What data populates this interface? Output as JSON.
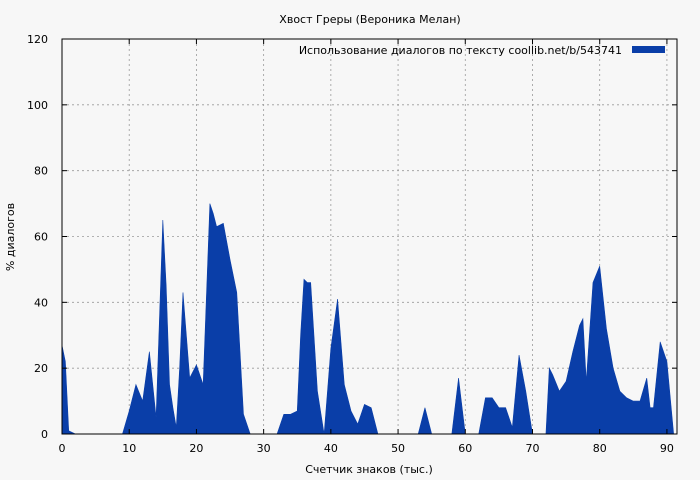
{
  "chart_data": {
    "type": "area",
    "title": "Хвост Греры (Вероника Мелан)",
    "xlabel": "Счетчик знаков (тыс.)",
    "ylabel": "% диалогов",
    "xlim": [
      0,
      91.5
    ],
    "ylim": [
      0,
      120
    ],
    "xticks": [
      0,
      10,
      20,
      30,
      40,
      50,
      60,
      70,
      80,
      90
    ],
    "yticks": [
      0,
      20,
      40,
      60,
      80,
      100,
      120
    ],
    "grid": true,
    "legend_position": "top-right",
    "series": [
      {
        "name": "Использование диалогов по тексту  coollib.net/b/543741",
        "color": "#0a3ea8",
        "x": [
          0,
          0.5,
          1,
          1.5,
          2,
          3,
          4,
          5,
          6,
          7,
          8,
          9,
          10,
          11,
          12,
          13,
          14,
          14.5,
          15,
          15.5,
          16,
          16.5,
          17,
          17.5,
          18,
          18.5,
          19,
          20,
          21,
          22,
          22.5,
          23,
          24,
          25,
          26,
          27,
          28,
          29,
          30,
          31,
          32,
          33,
          34,
          35,
          35.5,
          36,
          36.5,
          37,
          38,
          39,
          40,
          41,
          42,
          43,
          44,
          45,
          46,
          47,
          48,
          49,
          50,
          51,
          52,
          53,
          54,
          55,
          56,
          57,
          58,
          59,
          60,
          61,
          62,
          63,
          64,
          65,
          66,
          67,
          68,
          69,
          70,
          71,
          72,
          72.5,
          73,
          74,
          75,
          76,
          77,
          77.5,
          78,
          79,
          80,
          81,
          82,
          83,
          84,
          85,
          86,
          87,
          87.5,
          88,
          89,
          90,
          91
        ],
        "values": [
          27,
          22,
          1,
          0.5,
          0,
          0,
          0,
          0,
          0,
          0,
          0,
          0,
          7,
          15,
          10,
          25,
          5,
          35,
          65,
          45,
          15,
          8,
          2,
          20,
          43,
          30,
          17,
          21,
          15,
          70,
          67,
          63,
          64,
          53,
          43,
          6,
          0,
          0,
          0,
          0,
          0,
          6,
          6,
          7,
          30,
          47,
          46,
          46,
          13,
          0,
          26,
          41,
          15,
          7,
          3,
          9,
          8,
          0,
          0,
          0,
          0,
          0,
          0,
          0,
          8,
          0,
          0,
          0,
          0,
          17,
          0,
          0,
          0,
          11,
          11,
          8,
          8,
          2,
          24,
          13,
          0,
          0,
          0,
          20,
          18,
          13,
          16,
          25,
          33,
          35,
          16,
          46,
          51,
          32,
          20,
          13,
          11,
          10,
          10,
          17,
          8,
          8,
          28,
          22,
          0
        ]
      }
    ]
  }
}
